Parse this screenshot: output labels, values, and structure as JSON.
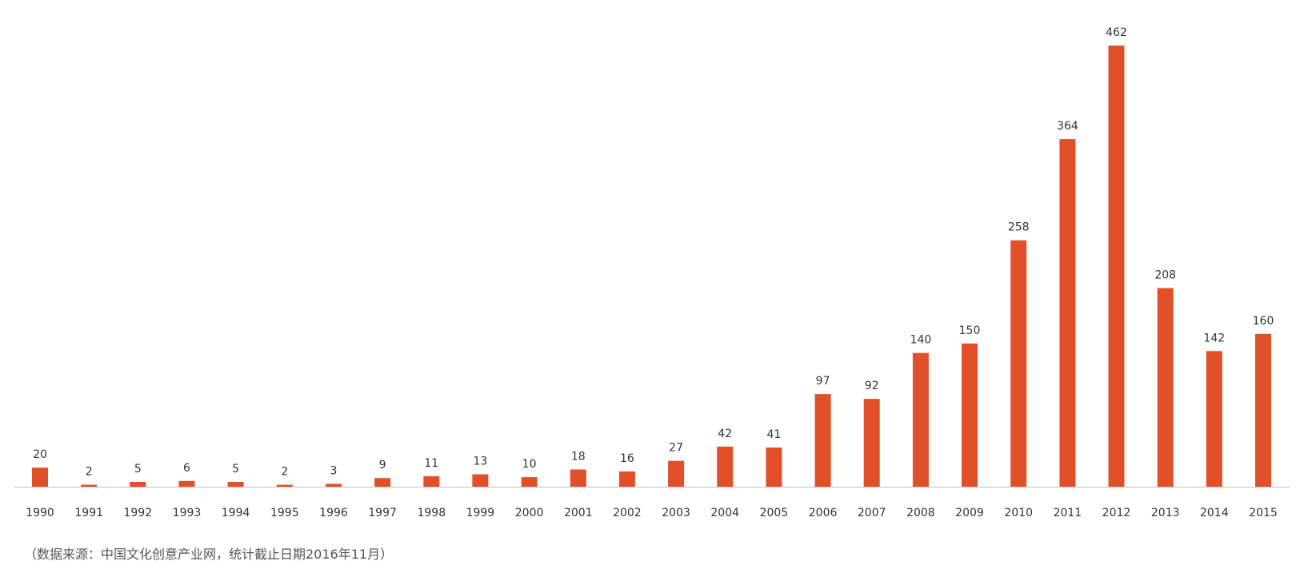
{
  "chart_data": {
    "type": "bar",
    "title": "",
    "xlabel": "",
    "ylabel": "",
    "categories": [
      "1990",
      "1991",
      "1992",
      "1993",
      "1994",
      "1995",
      "1996",
      "1997",
      "1998",
      "1999",
      "2000",
      "2001",
      "2002",
      "2003",
      "2004",
      "2005",
      "2006",
      "2007",
      "2008",
      "2009",
      "2010",
      "2011",
      "2012",
      "2013",
      "2014",
      "2015"
    ],
    "values": [
      20,
      2,
      5,
      6,
      5,
      2,
      3,
      9,
      11,
      13,
      10,
      18,
      16,
      27,
      42,
      41,
      97,
      92,
      140,
      150,
      258,
      364,
      462,
      208,
      142,
      160
    ],
    "ylim": [
      0,
      462
    ],
    "grid": false,
    "legend": "none",
    "colors": {
      "bar": "#e2502a",
      "axis": "#bfbfbf"
    }
  },
  "note": "（数据来源：中国文化创意产业网，统计截止日期2016年11月）"
}
